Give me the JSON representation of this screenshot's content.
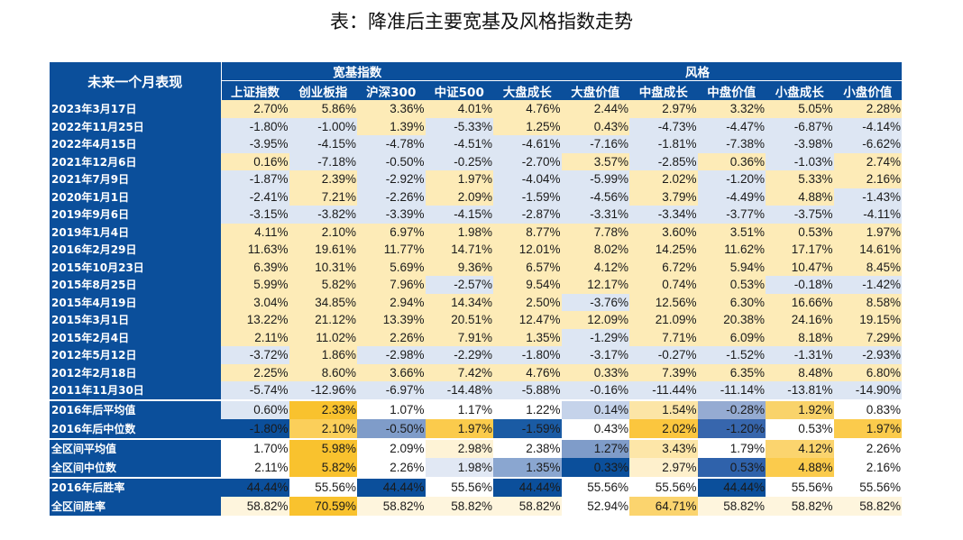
{
  "title": "表：降准后主要宽基及风格指数走势",
  "table": {
    "corner_label": "未来一个月表现",
    "groups": [
      "宽基指数",
      "风格"
    ],
    "columns": [
      "上证指数",
      "创业板指",
      "沪深300",
      "中证500",
      "大盘成长",
      "大盘价值",
      "中盘成长",
      "中盘价值",
      "小盘成长",
      "小盘价值"
    ],
    "rows": [
      {
        "label": "2023年3月17日",
        "values": [
          "2.70%",
          "5.86%",
          "3.36%",
          "4.01%",
          "4.76%",
          "2.44%",
          "2.97%",
          "3.32%",
          "5.05%",
          "2.28%"
        ]
      },
      {
        "label": "2022年11月25日",
        "values": [
          "-1.80%",
          "-1.00%",
          "1.39%",
          "-5.33%",
          "1.25%",
          "0.43%",
          "-4.73%",
          "-4.47%",
          "-6.87%",
          "-4.14%"
        ]
      },
      {
        "label": "2022年4月15日",
        "values": [
          "-3.95%",
          "-4.15%",
          "-4.78%",
          "-4.51%",
          "-4.61%",
          "-7.16%",
          "-1.81%",
          "-7.38%",
          "-3.98%",
          "-6.62%"
        ]
      },
      {
        "label": "2021年12月6日",
        "values": [
          "0.16%",
          "-7.18%",
          "-0.50%",
          "-0.25%",
          "-2.70%",
          "3.57%",
          "-2.85%",
          "0.36%",
          "-1.03%",
          "2.74%"
        ]
      },
      {
        "label": "2021年7月9日",
        "values": [
          "-1.87%",
          "2.39%",
          "-2.92%",
          "1.97%",
          "-4.04%",
          "-5.99%",
          "2.02%",
          "-1.20%",
          "5.33%",
          "2.16%"
        ]
      },
      {
        "label": "2020年1月1日",
        "values": [
          "-2.41%",
          "7.21%",
          "-2.26%",
          "2.09%",
          "-1.59%",
          "-4.56%",
          "3.79%",
          "-4.49%",
          "4.88%",
          "-1.43%"
        ]
      },
      {
        "label": "2019年9月6日",
        "values": [
          "-3.15%",
          "-3.82%",
          "-3.39%",
          "-4.15%",
          "-2.87%",
          "-3.31%",
          "-3.34%",
          "-3.77%",
          "-3.75%",
          "-4.11%"
        ]
      },
      {
        "label": "2019年1月4日",
        "values": [
          "4.11%",
          "2.10%",
          "6.97%",
          "1.98%",
          "8.77%",
          "7.78%",
          "3.60%",
          "3.51%",
          "0.53%",
          "1.97%"
        ]
      },
      {
        "label": "2016年2月29日",
        "values": [
          "11.63%",
          "19.61%",
          "11.77%",
          "14.71%",
          "12.01%",
          "8.02%",
          "14.25%",
          "11.62%",
          "17.17%",
          "14.61%"
        ]
      },
      {
        "label": "2015年10月23日",
        "values": [
          "6.39%",
          "10.31%",
          "5.69%",
          "9.36%",
          "6.57%",
          "4.12%",
          "6.72%",
          "5.94%",
          "10.47%",
          "8.45%"
        ]
      },
      {
        "label": "2015年8月25日",
        "values": [
          "5.99%",
          "5.82%",
          "7.96%",
          "-2.57%",
          "9.54%",
          "12.17%",
          "0.74%",
          "0.53%",
          "-0.18%",
          "-1.42%"
        ]
      },
      {
        "label": "2015年4月19日",
        "values": [
          "3.04%",
          "34.85%",
          "2.94%",
          "14.34%",
          "2.50%",
          "-3.76%",
          "12.56%",
          "6.30%",
          "16.66%",
          "8.58%"
        ]
      },
      {
        "label": "2015年3月1日",
        "values": [
          "13.22%",
          "21.12%",
          "13.39%",
          "20.51%",
          "12.47%",
          "12.09%",
          "21.09%",
          "20.38%",
          "24.16%",
          "19.15%"
        ]
      },
      {
        "label": "2015年2月4日",
        "values": [
          "2.11%",
          "11.02%",
          "2.26%",
          "7.91%",
          "1.35%",
          "-1.29%",
          "7.71%",
          "6.09%",
          "8.18%",
          "7.29%"
        ]
      },
      {
        "label": "2012年5月12日",
        "values": [
          "-3.72%",
          "1.86%",
          "-2.98%",
          "-2.29%",
          "-1.80%",
          "-3.17%",
          "-0.27%",
          "-1.52%",
          "-1.31%",
          "-2.93%"
        ]
      },
      {
        "label": "2012年2月18日",
        "values": [
          "2.25%",
          "8.60%",
          "3.66%",
          "7.42%",
          "4.76%",
          "0.33%",
          "7.39%",
          "6.35%",
          "8.48%",
          "6.80%"
        ]
      },
      {
        "label": "2011年11月30日",
        "values": [
          "-5.74%",
          "-12.96%",
          "-6.97%",
          "-14.48%",
          "-5.88%",
          "-0.16%",
          "-11.44%",
          "-11.14%",
          "-13.81%",
          "-14.90%"
        ]
      }
    ],
    "summary": [
      {
        "label": "2016年后平均值",
        "values": [
          "0.60%",
          "2.33%",
          "1.07%",
          "1.17%",
          "1.22%",
          "0.14%",
          "1.54%",
          "-0.28%",
          "1.92%",
          "0.83%"
        ],
        "colors": [
          "#dde6f3",
          "#f9c22e",
          "#ffffff",
          "#ffffff",
          "#ffffff",
          "#c5d3ea",
          "#fce5a6",
          "#95abd2",
          "#f9d36a",
          "#ffffff"
        ]
      },
      {
        "label": "2016年后中位数",
        "values": [
          "-1.80%",
          "2.10%",
          "-0.50%",
          "1.97%",
          "-1.59%",
          "0.43%",
          "2.02%",
          "-1.20%",
          "0.53%",
          "1.97%"
        ],
        "colors": [
          "#0b4f9b",
          "#fbcf5a",
          "#7f9cc9",
          "#fbcb4c",
          "#1a5ba4",
          "#ffffff",
          "#fbc63e",
          "#3766ad",
          "#ffffff",
          "#fbcb4c"
        ]
      },
      {
        "label": "全区间平均值",
        "values": [
          "1.70%",
          "5.98%",
          "2.09%",
          "2.98%",
          "2.38%",
          "1.27%",
          "3.43%",
          "1.79%",
          "4.12%",
          "2.26%"
        ],
        "colors": [
          "#ffffff",
          "#f9c22e",
          "#ffffff",
          "#fef3d6",
          "#ffffff",
          "#7f9cc9",
          "#fde6a8",
          "#ffffff",
          "#fbd46e",
          "#ffffff"
        ]
      },
      {
        "label": "全区间中位数",
        "values": [
          "2.11%",
          "5.82%",
          "2.26%",
          "1.98%",
          "1.35%",
          "0.33%",
          "2.97%",
          "0.53%",
          "4.88%",
          "2.16%"
        ],
        "colors": [
          "#ffffff",
          "#f9c22e",
          "#ffffff",
          "#e1e8f4",
          "#8aa6d0",
          "#0b4f9b",
          "#fef0cc",
          "#2f62ab",
          "#fbcb4c",
          "#ffffff"
        ]
      },
      {
        "label": "2016年后胜率",
        "values": [
          "44.44%",
          "55.56%",
          "44.44%",
          "55.56%",
          "44.44%",
          "55.56%",
          "55.56%",
          "44.44%",
          "55.56%",
          "55.56%"
        ],
        "colors": [
          "#0b4f9b",
          "#ffffff",
          "#0b4f9b",
          "#ffffff",
          "#0b4f9b",
          "#ffffff",
          "#ffffff",
          "#0b4f9b",
          "#ffffff",
          "#ffffff"
        ]
      },
      {
        "label": "全区间胜率",
        "values": [
          "58.82%",
          "70.59%",
          "58.82%",
          "58.82%",
          "58.82%",
          "52.94%",
          "64.71%",
          "58.82%",
          "58.82%",
          "58.82%"
        ],
        "colors": [
          "#fef5dd",
          "#f9c22e",
          "#fef5dd",
          "#fef5dd",
          "#fef5dd",
          "#ffffff",
          "#fbd46e",
          "#fef5dd",
          "#fef5dd",
          "#fef5dd"
        ]
      }
    ],
    "palette": {
      "header_bg": "#0b4f9b",
      "positive": "#fdebb7",
      "negative": "#dde6f3"
    }
  }
}
